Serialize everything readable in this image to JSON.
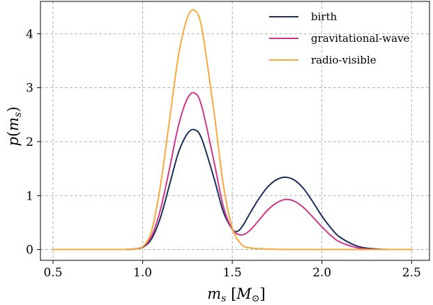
{
  "chart_data": {
    "type": "line",
    "xlabel": "m_s [M_⊙]",
    "ylabel": "p(m_s)",
    "xlim": [
      0.43,
      2.6
    ],
    "ylim": [
      -0.2,
      4.6
    ],
    "xticks": [
      0.5,
      1.0,
      1.5,
      2.0,
      2.5
    ],
    "xtick_labels": [
      "0.5",
      "1.0",
      "1.5",
      "2.0",
      "2.5"
    ],
    "yticks": [
      0,
      1,
      2,
      3,
      4
    ],
    "ytick_labels": [
      "0",
      "1",
      "2",
      "3",
      "4"
    ],
    "grid": true,
    "legend_position": "top-right",
    "colors": {
      "birth": "#1b2f5e",
      "gw": "#d0368a",
      "radio": "#f8a83c"
    },
    "series": [
      {
        "name": "birth",
        "color": "#1b2f5e",
        "x": [
          0.5,
          0.6,
          0.7,
          0.8,
          0.9,
          0.95,
          1.0,
          1.05,
          1.1,
          1.15,
          1.2,
          1.25,
          1.29,
          1.33,
          1.4,
          1.45,
          1.5,
          1.53,
          1.56,
          1.6,
          1.65,
          1.7,
          1.75,
          1.8,
          1.85,
          1.9,
          1.95,
          2.0,
          2.05,
          2.1,
          2.2,
          2.3,
          2.4,
          2.5
        ],
        "values": [
          0,
          0,
          0,
          0,
          0,
          0.01,
          0.04,
          0.2,
          0.6,
          1.2,
          1.8,
          2.15,
          2.22,
          2.05,
          1.3,
          0.7,
          0.38,
          0.34,
          0.45,
          0.68,
          0.95,
          1.17,
          1.3,
          1.34,
          1.28,
          1.12,
          0.88,
          0.62,
          0.4,
          0.23,
          0.06,
          0.01,
          0,
          0
        ]
      },
      {
        "name": "gravitational-wave",
        "color": "#d0368a",
        "x": [
          0.5,
          0.6,
          0.7,
          0.8,
          0.9,
          0.95,
          1.0,
          1.05,
          1.1,
          1.15,
          1.2,
          1.25,
          1.29,
          1.33,
          1.4,
          1.45,
          1.5,
          1.55,
          1.6,
          1.65,
          1.7,
          1.75,
          1.8,
          1.85,
          1.9,
          1.95,
          2.0,
          2.05,
          2.1,
          2.2,
          2.3,
          2.4,
          2.5
        ],
        "values": [
          0,
          0,
          0,
          0,
          0,
          0.01,
          0.05,
          0.25,
          0.75,
          1.5,
          2.3,
          2.8,
          2.9,
          2.65,
          1.6,
          0.8,
          0.38,
          0.27,
          0.36,
          0.55,
          0.74,
          0.87,
          0.93,
          0.89,
          0.77,
          0.6,
          0.42,
          0.26,
          0.14,
          0.03,
          0,
          0,
          0
        ]
      },
      {
        "name": "radio-visible",
        "color": "#f8a83c",
        "x": [
          0.5,
          0.6,
          0.7,
          0.8,
          0.9,
          0.95,
          1.0,
          1.05,
          1.1,
          1.15,
          1.2,
          1.25,
          1.29,
          1.33,
          1.4,
          1.45,
          1.5,
          1.55,
          1.6,
          1.7,
          1.8,
          1.9,
          2.0,
          2.2,
          2.5
        ],
        "values": [
          0,
          0,
          0,
          0,
          0,
          0.01,
          0.05,
          0.35,
          1.2,
          2.4,
          3.6,
          4.3,
          4.43,
          4.1,
          2.5,
          1.2,
          0.4,
          0.1,
          0.03,
          0.01,
          0,
          0,
          0,
          0,
          0
        ]
      }
    ]
  }
}
